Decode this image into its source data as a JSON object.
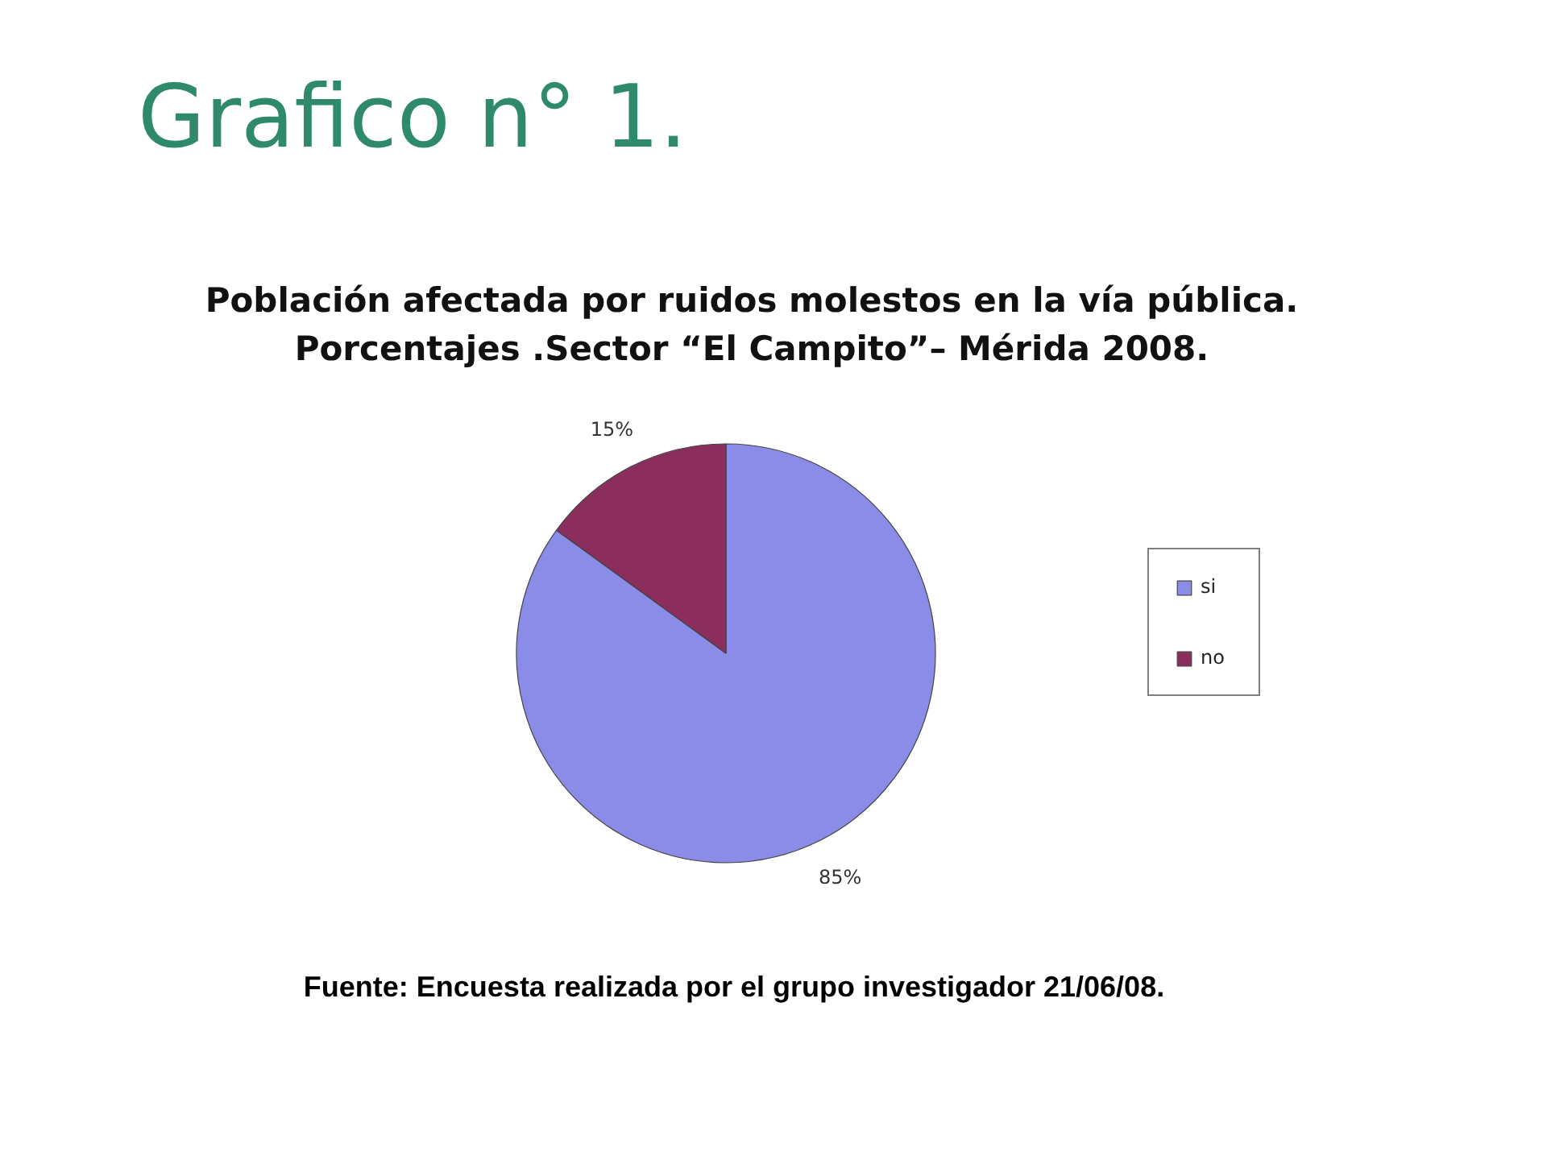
{
  "chart_data": {
    "type": "pie",
    "title": "Grafico n° 1.",
    "subtitle": "Población afectada por ruidos molestos en la vía pública.\nPorcentajes .Sector “El Campito”– Mérida 2008.",
    "categories": [
      "si",
      "no"
    ],
    "values": [
      85,
      15
    ],
    "colors": [
      "#8b8be8",
      "#8b2d5d"
    ],
    "value_labels": [
      "85%",
      "15%"
    ],
    "legend": "right",
    "annotations": [
      "Fuente: Encuesta realizada por el grupo investigador 21/06/08."
    ]
  }
}
